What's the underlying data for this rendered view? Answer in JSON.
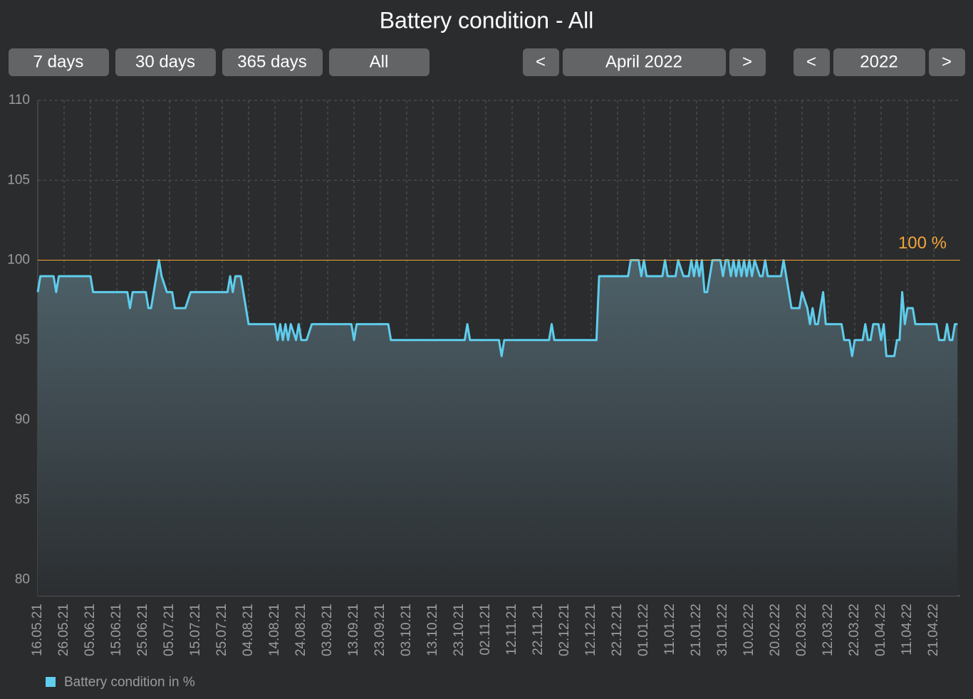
{
  "toolbar": {
    "ranges": [
      "7 days",
      "30 days",
      "365 days",
      "All"
    ],
    "month_nav": {
      "prev": "<",
      "label": "April 2022",
      "next": ">"
    },
    "year_nav": {
      "prev": "<",
      "label": "2022",
      "next": ">"
    }
  },
  "chart_data": {
    "type": "line",
    "title": "Battery condition - All",
    "xlim": [
      "16.05.21",
      "01.05.22"
    ],
    "xticks": [
      "16.05.21",
      "26.05.21",
      "05.06.21",
      "15.06.21",
      "25.06.21",
      "05.07.21",
      "15.07.21",
      "25.07.21",
      "04.08.21",
      "14.08.21",
      "24.08.21",
      "03.09.21",
      "13.09.21",
      "23.09.21",
      "03.10.21",
      "13.10.21",
      "23.10.21",
      "02.11.21",
      "12.11.21",
      "22.11.21",
      "02.12.21",
      "12.12.21",
      "22.12.21",
      "01.01.22",
      "11.01.22",
      "21.01.22",
      "31.01.22",
      "10.02.22",
      "20.02.22",
      "02.03.22",
      "12.03.22",
      "22.03.22",
      "01.04.22",
      "11.04.22",
      "21.04.22"
    ],
    "ylim": [
      79,
      110
    ],
    "yticks": [
      80,
      85,
      90,
      95,
      100,
      105,
      110
    ],
    "grid": true,
    "reference_line": {
      "value": 100,
      "label": "100 %",
      "color": "#f3a43b"
    },
    "series": [
      {
        "name": "Battery condition in %",
        "color": "#5fcdec",
        "x": [
          "16.05.21",
          "17.05.21",
          "22.05.21",
          "23.05.21",
          "24.05.21",
          "05.06.21",
          "06.06.21",
          "19.06.21",
          "20.06.21",
          "21.06.21",
          "26.06.21",
          "27.06.21",
          "28.06.21",
          "29.06.21",
          "01.07.21",
          "02.07.21",
          "04.07.21",
          "06.07.21",
          "07.07.21",
          "11.07.21",
          "13.07.21",
          "27.07.21",
          "28.07.21",
          "29.07.21",
          "30.07.21",
          "01.08.21",
          "02.08.21",
          "04.08.21",
          "14.08.21",
          "15.08.21",
          "16.08.21",
          "17.08.21",
          "18.08.21",
          "19.08.21",
          "20.08.21",
          "22.08.21",
          "23.08.21",
          "24.08.21",
          "26.08.21",
          "28.08.21",
          "12.09.21",
          "13.09.21",
          "14.09.21",
          "26.09.21",
          "27.09.21",
          "25.10.21",
          "26.10.21",
          "27.10.21",
          "07.11.21",
          "08.11.21",
          "09.11.21",
          "26.11.21",
          "27.11.21",
          "28.11.21",
          "14.12.21",
          "15.12.21",
          "26.12.21",
          "27.12.21",
          "30.12.21",
          "31.12.21",
          "01.01.22",
          "02.01.22",
          "08.01.22",
          "09.01.22",
          "10.01.22",
          "13.01.22",
          "14.01.22",
          "16.01.22",
          "18.01.22",
          "19.01.22",
          "20.01.22",
          "21.01.22",
          "22.01.22",
          "23.01.22",
          "24.01.22",
          "25.01.22",
          "26.01.22",
          "27.01.22",
          "30.01.22",
          "31.01.22",
          "01.02.22",
          "02.02.22",
          "03.02.22",
          "04.02.22",
          "05.02.22",
          "06.02.22",
          "07.02.22",
          "08.02.22",
          "09.02.22",
          "10.02.22",
          "11.02.22",
          "12.02.22",
          "14.02.22",
          "15.02.22",
          "16.02.22",
          "17.02.22",
          "22.02.22",
          "23.02.22",
          "25.02.22",
          "26.02.22",
          "01.03.22",
          "02.03.22",
          "04.03.22",
          "05.03.22",
          "06.03.22",
          "07.03.22",
          "08.03.22",
          "10.03.22",
          "11.03.22",
          "17.03.22",
          "18.03.22",
          "20.03.22",
          "21.03.22",
          "22.03.22",
          "25.03.22",
          "26.03.22",
          "27.03.22",
          "28.03.22",
          "29.03.22",
          "31.03.22",
          "01.04.22",
          "02.04.22",
          "03.04.22",
          "06.04.22",
          "07.04.22",
          "08.04.22",
          "09.04.22",
          "10.04.22",
          "11.04.22",
          "13.04.22",
          "14.04.22",
          "22.04.22",
          "23.04.22",
          "25.04.22",
          "26.04.22",
          "27.04.22",
          "28.04.22",
          "29.04.22",
          "30.04.22"
        ],
        "values": [
          98,
          99,
          99,
          98,
          99,
          99,
          98,
          98,
          97,
          98,
          98,
          97,
          97,
          98,
          100,
          99,
          98,
          98,
          97,
          97,
          98,
          98,
          99,
          98,
          99,
          99,
          98,
          96,
          96,
          95,
          96,
          95,
          96,
          95,
          96,
          95,
          96,
          95,
          95,
          96,
          96,
          95,
          96,
          96,
          95,
          95,
          96,
          95,
          95,
          94,
          95,
          95,
          96,
          95,
          95,
          99,
          99,
          100,
          100,
          99,
          100,
          99,
          99,
          100,
          99,
          99,
          100,
          99,
          99,
          100,
          99,
          100,
          99,
          100,
          98,
          98,
          99,
          100,
          100,
          99,
          100,
          100,
          99,
          100,
          99,
          100,
          99,
          100,
          99,
          100,
          99,
          100,
          99,
          99,
          100,
          99,
          99,
          100,
          98,
          97,
          97,
          98,
          97,
          96,
          97,
          96,
          96,
          98,
          96,
          96,
          95,
          95,
          94,
          95,
          95,
          96,
          95,
          95,
          96,
          96,
          95,
          96,
          94,
          94,
          95,
          95,
          98,
          96,
          97,
          97,
          96,
          96,
          95,
          95,
          96,
          95,
          95,
          96,
          96
        ]
      }
    ]
  }
}
